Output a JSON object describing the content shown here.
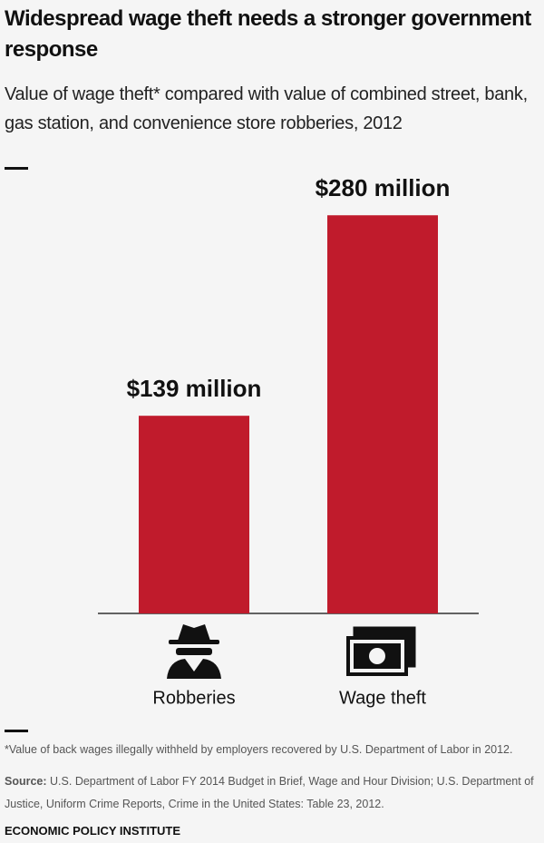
{
  "chart_data": {
    "type": "bar",
    "title": "Widespread wage theft needs a stronger government response",
    "subtitle": "Value of wage theft* compared with value of combined street, bank, gas station, and convenience store robberies, 2012",
    "categories": [
      "Robberies",
      "Wage theft"
    ],
    "values": [
      139,
      280
    ],
    "value_labels": [
      "$139 million",
      "$280 million"
    ],
    "color": "#c01b2c",
    "footnote": "*Value of back wages illegally withheld by employers recovered by U.S. Department of Labor in 2012.",
    "source_label": "Source:",
    "source": "U.S. Department of Labor FY 2014 Budget in Brief, Wage and Hour Division; U.S. Department of Justice, Uniform Crime Reports, Crime in the United States: Table 23, 2012.",
    "credit": "ECONOMIC POLICY INSTITUTE"
  }
}
